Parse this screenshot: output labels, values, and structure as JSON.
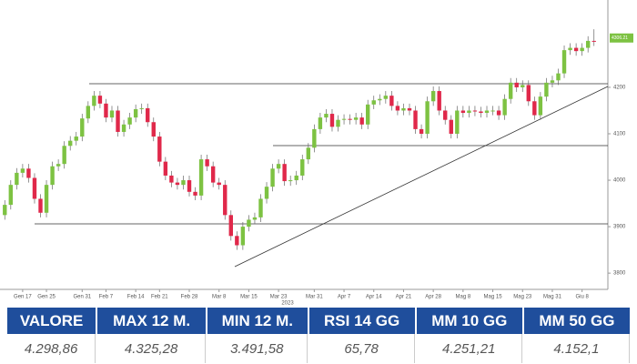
{
  "chart_data": {
    "type": "candlestick",
    "up_color": "#7dc242",
    "down_color": "#e0284a",
    "open": [
      3925,
      3947,
      3990,
      4016,
      4025,
      4005,
      3960,
      3930,
      3990,
      4030,
      4035,
      4074,
      4085,
      4094,
      4133,
      4160,
      4182,
      4165,
      4135,
      4150,
      4104,
      4120,
      4135,
      4153,
      4155,
      4125,
      4094,
      4040,
      4010,
      3995,
      3990,
      4000,
      3975,
      3967,
      4045,
      4030,
      3995,
      3990,
      3925,
      3880,
      3860,
      3900,
      3915,
      3920,
      3960,
      3986,
      4025,
      4035,
      3998,
      4000,
      4010,
      4045,
      4070,
      4110,
      4135,
      4143,
      4115,
      4130,
      4132,
      4130,
      4135,
      4120,
      4163,
      4172,
      4175,
      4182,
      4160,
      4150,
      4155,
      4150,
      4110,
      4100,
      4170,
      4192,
      4150,
      4130,
      4100,
      4150,
      4145,
      4150,
      4148,
      4145,
      4150,
      4150,
      4140,
      4175,
      4210,
      4200,
      4205,
      4170,
      4140,
      4180,
      4210,
      4215,
      4230,
      4280,
      4285,
      4278,
      4285,
      4300
    ],
    "high": [
      3957,
      4000,
      4026,
      4035,
      4035,
      4015,
      3970,
      4000,
      4040,
      4045,
      4084,
      4095,
      4104,
      4143,
      4170,
      4192,
      4192,
      4175,
      4160,
      4160,
      4130,
      4145,
      4163,
      4165,
      4165,
      4135,
      4104,
      4050,
      4020,
      4005,
      4010,
      4010,
      3985,
      4055,
      4055,
      4040,
      4005,
      4000,
      3935,
      3890,
      3910,
      3925,
      3930,
      3970,
      3996,
      4035,
      4045,
      4045,
      4010,
      4020,
      4055,
      4080,
      4120,
      4145,
      4153,
      4153,
      4140,
      4142,
      4142,
      4145,
      4145,
      4173,
      4182,
      4185,
      4192,
      4192,
      4170,
      4165,
      4165,
      4160,
      4120,
      4180,
      4202,
      4202,
      4160,
      4140,
      4160,
      4160,
      4160,
      4160,
      4158,
      4160,
      4160,
      4160,
      4185,
      4220,
      4220,
      4215,
      4215,
      4180,
      4190,
      4220,
      4225,
      4240,
      4290,
      4295,
      4295,
      4295,
      4310,
      4325
    ],
    "low": [
      3915,
      3937,
      3980,
      4006,
      3995,
      3950,
      3920,
      3920,
      3980,
      4020,
      4025,
      4064,
      4075,
      4084,
      4123,
      4150,
      4155,
      4125,
      4125,
      4094,
      4094,
      4110,
      4125,
      4143,
      4115,
      4084,
      4030,
      4000,
      3985,
      3980,
      3980,
      3965,
      3957,
      3957,
      4020,
      3985,
      3980,
      3915,
      3870,
      3850,
      3850,
      3890,
      3905,
      3910,
      3950,
      3976,
      4015,
      3988,
      3988,
      3990,
      4000,
      4035,
      4060,
      4100,
      4125,
      4105,
      4105,
      4120,
      4120,
      4120,
      4110,
      4110,
      4153,
      4162,
      4165,
      4150,
      4140,
      4140,
      4140,
      4100,
      4090,
      4090,
      4160,
      4140,
      4120,
      4090,
      4090,
      4135,
      4135,
      4138,
      4135,
      4135,
      4140,
      4130,
      4130,
      4165,
      4190,
      4190,
      4160,
      4130,
      4130,
      4170,
      4200,
      4205,
      4220,
      4270,
      4268,
      4268,
      4275,
      4289
    ],
    "close": [
      3947,
      3990,
      4016,
      4025,
      4005,
      3960,
      3930,
      3990,
      4030,
      4035,
      4074,
      4085,
      4094,
      4133,
      4160,
      4182,
      4165,
      4135,
      4150,
      4104,
      4120,
      4135,
      4153,
      4155,
      4125,
      4094,
      4040,
      4010,
      3995,
      3990,
      4000,
      3975,
      3967,
      4045,
      4030,
      3995,
      3990,
      3925,
      3880,
      3860,
      3900,
      3915,
      3920,
      3960,
      3986,
      4025,
      4035,
      3998,
      4000,
      4010,
      4045,
      4070,
      4110,
      4135,
      4143,
      4115,
      4130,
      4132,
      4130,
      4135,
      4120,
      4163,
      4172,
      4175,
      4182,
      4160,
      4150,
      4155,
      4150,
      4110,
      4100,
      4170,
      4192,
      4150,
      4130,
      4100,
      4150,
      4145,
      4150,
      4148,
      4145,
      4150,
      4150,
      4140,
      4175,
      4210,
      4200,
      4205,
      4170,
      4140,
      4180,
      4210,
      4215,
      4230,
      4280,
      4285,
      4278,
      4285,
      4300,
      4299
    ],
    "ylim": [
      3765,
      4388
    ],
    "yticks": [
      3800,
      3900,
      4000,
      4100,
      4200
    ],
    "xticks": [
      {
        "value": 3,
        "label": "Gen 17"
      },
      {
        "value": 7,
        "label": "Gen 25"
      },
      {
        "value": 13,
        "label": "Gen 31"
      },
      {
        "value": 17,
        "label": "Feb 7"
      },
      {
        "value": 22,
        "label": "Feb 14"
      },
      {
        "value": 26,
        "label": "Feb 21"
      },
      {
        "value": 31,
        "label": "Feb 28"
      },
      {
        "value": 36,
        "label": "Mar 8"
      },
      {
        "value": 41,
        "label": "Mar 15"
      },
      {
        "value": 46,
        "label": "Mar 23"
      },
      {
        "value": 52,
        "label": "Mar 31"
      },
      {
        "value": 57,
        "label": "Apr 7"
      },
      {
        "value": 62,
        "label": "Apr 14"
      },
      {
        "value": 67,
        "label": "Apr 21"
      },
      {
        "value": 72,
        "label": "Apr 28"
      },
      {
        "value": 77,
        "label": "Mag 8"
      },
      {
        "value": 82,
        "label": "Mag 15"
      },
      {
        "value": 87,
        "label": "Mag 23"
      },
      {
        "value": 92,
        "label": "Mag 31"
      },
      {
        "value": 97,
        "label": "Giu 8"
      }
    ],
    "year_label": "2023",
    "price_tag": {
      "value": 4306.21,
      "label": "4306.21"
    }
  },
  "table": {
    "headers": [
      "VALORE",
      "MAX 12 M.",
      "MIN 12 M.",
      "RSI 14 GG",
      "MM 10 GG",
      "MM 50 GG"
    ],
    "rows": [
      [
        "4.298,86",
        "4.325,28",
        "3.491,58",
        "65,78",
        "4.251,21",
        "4.152,1"
      ]
    ]
  }
}
